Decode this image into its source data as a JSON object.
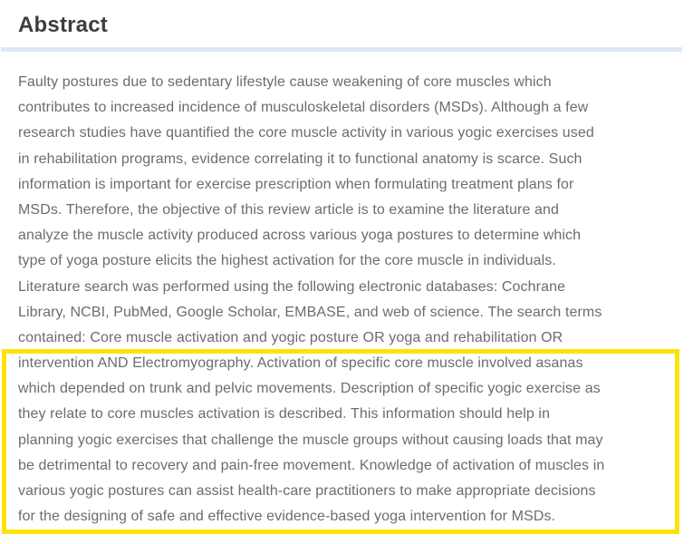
{
  "abstract": {
    "heading": "Abstract",
    "lines": [
      "Faulty postures due to sedentary lifestyle cause weakening of core muscles which",
      "contributes to increased incidence of musculoskeletal disorders (MSDs). Although a few",
      "research studies have quantified the core muscle activity in various yogic exercises used",
      "in rehabilitation programs, evidence correlating it to functional anatomy is scarce. Such",
      "information is important for exercise prescription when formulating treatment plans for",
      "MSDs. Therefore, the objective of this review article is to examine the literature and",
      "analyze the muscle activity produced across various yoga postures to determine which",
      "type of yoga posture elicits the highest activation for the core muscle in individuals.",
      "Literature search was performed using the following electronic databases: Cochrane",
      "Library, NCBI, PubMed, Google Scholar, EMBASE, and web of science. The search terms",
      "contained: Core muscle activation and yogic posture OR yoga and rehabilitation OR",
      "intervention AND Electromyography. Activation of specific core muscle involved asanas",
      "which depended on trunk and pelvic movements. Description of specific yogic exercise as",
      "they relate to core muscles activation is described. This information should help in",
      "planning yogic exercises that challenge the muscle groups without causing loads that may",
      "be detrimental to recovery and pain-free movement. Knowledge of activation of muscles in",
      "various yogic postures can assist health-care practitioners to make appropriate decisions",
      "for the designing of safe and effective evidence-based yoga intervention for MSDs."
    ],
    "highlight": {
      "highlighted_line_start": 12,
      "highlighted_line_end": 18,
      "border_color": "#ffe205"
    }
  },
  "colors": {
    "heading_text": "#3d3d3d",
    "body_text": "#6c6c6c",
    "divider": "#dde9f4",
    "highlight_border": "#ffe205",
    "background": "#ffffff"
  }
}
